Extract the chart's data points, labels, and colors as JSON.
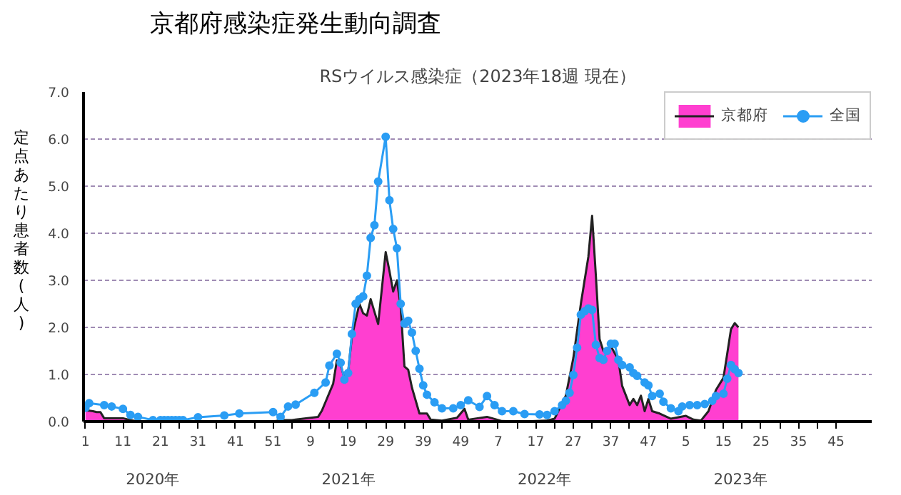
{
  "chart_data": {
    "type": "area",
    "title": "京都府感染症発生動向調査",
    "subtitle": "RSウイルス感染症（2023年18週 現在）",
    "ylabel": "定点あたり患者数(人)",
    "categories": [
      "1",
      null,
      null,
      null,
      null,
      null,
      null,
      null,
      null,
      null,
      "11",
      null,
      null,
      null,
      null,
      null,
      null,
      null,
      null,
      null,
      "21",
      null,
      null,
      null,
      null,
      null,
      null,
      null,
      null,
      null,
      "31",
      null,
      null,
      null,
      null,
      null,
      null,
      null,
      null,
      null,
      "41",
      null,
      null,
      null,
      null,
      null,
      null,
      null,
      null,
      null,
      "51",
      null,
      null,
      null,
      null,
      null,
      null,
      null,
      null,
      null,
      "9",
      null,
      null,
      null,
      null,
      null,
      null,
      null,
      null,
      null,
      "19",
      null,
      null,
      null,
      null,
      null,
      null,
      null,
      null,
      null,
      "29",
      null,
      null,
      null,
      null,
      null,
      null,
      null,
      null,
      null,
      "39",
      null,
      null,
      null,
      null,
      null,
      null,
      null,
      null,
      null,
      "49",
      null,
      null,
      null,
      null,
      null,
      null,
      null,
      null,
      null,
      "7",
      null,
      null,
      null,
      null,
      null,
      null,
      null,
      null,
      null,
      "17",
      null,
      null,
      null,
      null,
      null,
      null,
      null,
      null,
      null,
      "27",
      null,
      null,
      null,
      null,
      null,
      null,
      null,
      null,
      null,
      "37",
      null,
      null,
      null,
      null,
      null,
      null,
      null,
      null,
      null,
      "47",
      null,
      null,
      null,
      null,
      null,
      null,
      null,
      null,
      null,
      "5",
      null,
      null,
      null,
      null,
      null,
      null,
      null,
      null,
      null,
      "15",
      null,
      null,
      null,
      null,
      null,
      null,
      null,
      null,
      null,
      "25",
      null,
      null,
      null,
      null,
      null,
      null,
      null,
      null,
      null,
      "35",
      null,
      null,
      null,
      null,
      null,
      null,
      null,
      null,
      null,
      "45",
      null,
      null,
      null,
      null,
      null,
      null,
      null,
      null,
      null
    ],
    "ylim": [
      0,
      7
    ],
    "yticks": [
      {
        "value": 0,
        "label": "0.0"
      },
      {
        "value": 1,
        "label": "1.0"
      },
      {
        "value": 2,
        "label": "2.0"
      },
      {
        "value": 3,
        "label": "3.0"
      },
      {
        "value": 4,
        "label": "4.0"
      },
      {
        "value": 5,
        "label": "5.0"
      },
      {
        "value": 6,
        "label": "6.0"
      },
      {
        "value": 7,
        "label": "7.0"
      }
    ],
    "grid": "y",
    "legend": "top right",
    "annotations": [
      "2020年",
      "2021年",
      "2022年",
      "2023年"
    ],
    "series": [
      {
        "name": "京都府",
        "color": "#ff3fd0",
        "values": [
          0.23,
          0.23,
          0.22,
          0.2,
          0.2,
          0.07,
          0.07,
          0.07,
          0.07,
          0.07,
          0.07,
          null,
          0.03,
          null,
          0,
          0,
          0,
          0,
          0,
          0,
          0,
          0,
          0,
          0,
          0,
          0,
          0,
          0,
          0,
          0,
          0,
          0,
          0,
          0,
          0,
          0,
          0,
          0,
          0,
          0,
          0,
          0,
          0,
          0,
          0,
          0,
          0,
          0,
          0,
          0,
          0,
          null,
          0.03,
          null,
          null,
          0.03,
          0.04,
          null,
          null,
          null,
          null,
          null,
          0.1,
          0.23,
          0.42,
          null,
          0.8,
          1.3,
          1.2,
          0.93,
          1.06,
          1.8,
          null,
          2.5,
          2.3,
          2.25,
          2.6,
          null,
          2.07,
          null,
          3.6,
          3.2,
          2.76,
          3.0,
          2.44,
          1.17,
          1.1,
          0.72,
          null,
          0.17,
          null,
          0.17,
          0.04,
          null,
          null,
          0.02,
          null,
          null,
          null,
          0.08,
          null,
          0.27,
          0.04,
          null,
          null,
          null,
          null,
          0.1,
          null,
          null,
          null,
          0.01,
          null,
          null,
          null,
          null,
          0,
          null,
          null,
          null,
          null,
          null,
          null,
          0.02,
          null,
          0.06,
          null,
          null,
          0.55,
          null,
          1.35,
          null,
          2.5,
          null,
          3.5,
          4.37,
          3.1,
          1.75,
          1.5,
          null,
          1.6,
          null,
          1.31,
          0.76,
          null,
          0.35,
          0.48,
          0.35,
          0.55,
          0.22,
          0.48,
          0.22,
          null,
          0.17,
          null,
          null,
          0.06,
          null,
          0.09,
          null,
          0.12,
          null,
          0.04,
          null,
          0.02,
          null,
          0.22,
          null,
          0.67,
          null,
          0.93,
          1.44,
          1.96,
          2.09,
          2.0,
          null,
          null,
          null,
          null,
          null,
          null,
          null,
          null,
          null,
          null,
          null,
          null,
          null,
          null,
          null,
          null,
          null,
          null,
          null,
          null,
          null,
          null,
          null,
          null,
          null,
          null,
          null,
          null,
          null,
          null,
          null,
          null,
          null,
          null,
          null
        ]
      },
      {
        "name": "全国",
        "type": "line",
        "marker": "circle",
        "color": "#2a9df4",
        "values": [
          0.29,
          0.39,
          null,
          null,
          null,
          0.35,
          null,
          0.32,
          null,
          null,
          0.27,
          null,
          0.14,
          null,
          0.1,
          null,
          null,
          null,
          0.03,
          null,
          0.03,
          0.03,
          0.03,
          0.03,
          0.03,
          0.03,
          0.03,
          null,
          null,
          null,
          0.09,
          null,
          null,
          null,
          null,
          null,
          null,
          0.13,
          null,
          null,
          null,
          0.17,
          null,
          null,
          null,
          null,
          null,
          null,
          null,
          null,
          0.2,
          null,
          0.1,
          null,
          0.32,
          null,
          0.36,
          null,
          null,
          null,
          null,
          0.61,
          null,
          null,
          0.83,
          1.19,
          null,
          1.44,
          1.25,
          0.89,
          1.03,
          1.86,
          2.5,
          2.6,
          2.66,
          3.1,
          3.9,
          4.17,
          5.1,
          null,
          6.05,
          4.7,
          4.09,
          3.68,
          2.5,
          2.08,
          2.14,
          1.89,
          1.5,
          1.12,
          0.77,
          0.57,
          null,
          0.41,
          null,
          0.28,
          null,
          null,
          0.28,
          null,
          0.35,
          null,
          0.45,
          null,
          null,
          0.31,
          null,
          0.54,
          null,
          0.35,
          null,
          0.22,
          null,
          null,
          0.22,
          null,
          null,
          0.16,
          null,
          null,
          null,
          0.15,
          null,
          0.14,
          null,
          0.22,
          null,
          0.35,
          0.44,
          0.61,
          0.99,
          1.57,
          2.27,
          2.34,
          2.4,
          2.37,
          1.63,
          1.35,
          1.31,
          1.5,
          1.65,
          1.65,
          1.31,
          1.2,
          null,
          1.15,
          1.03,
          0.97,
          null,
          0.83,
          0.77,
          0.54,
          null,
          0.59,
          0.42,
          null,
          0.28,
          null,
          0.22,
          0.32,
          null,
          0.35,
          null,
          0.35,
          null,
          0.37,
          null,
          0.44,
          0.54,
          null,
          0.59,
          0.91,
          1.2,
          1.11,
          1.03,
          null,
          null,
          null,
          null,
          null,
          null,
          null,
          null,
          null,
          null,
          null,
          null,
          null,
          null,
          null,
          null,
          null,
          null,
          null,
          null,
          null,
          null,
          null,
          null,
          null,
          null,
          null,
          null,
          null,
          null,
          null,
          null,
          null,
          null,
          null
        ]
      }
    ]
  }
}
